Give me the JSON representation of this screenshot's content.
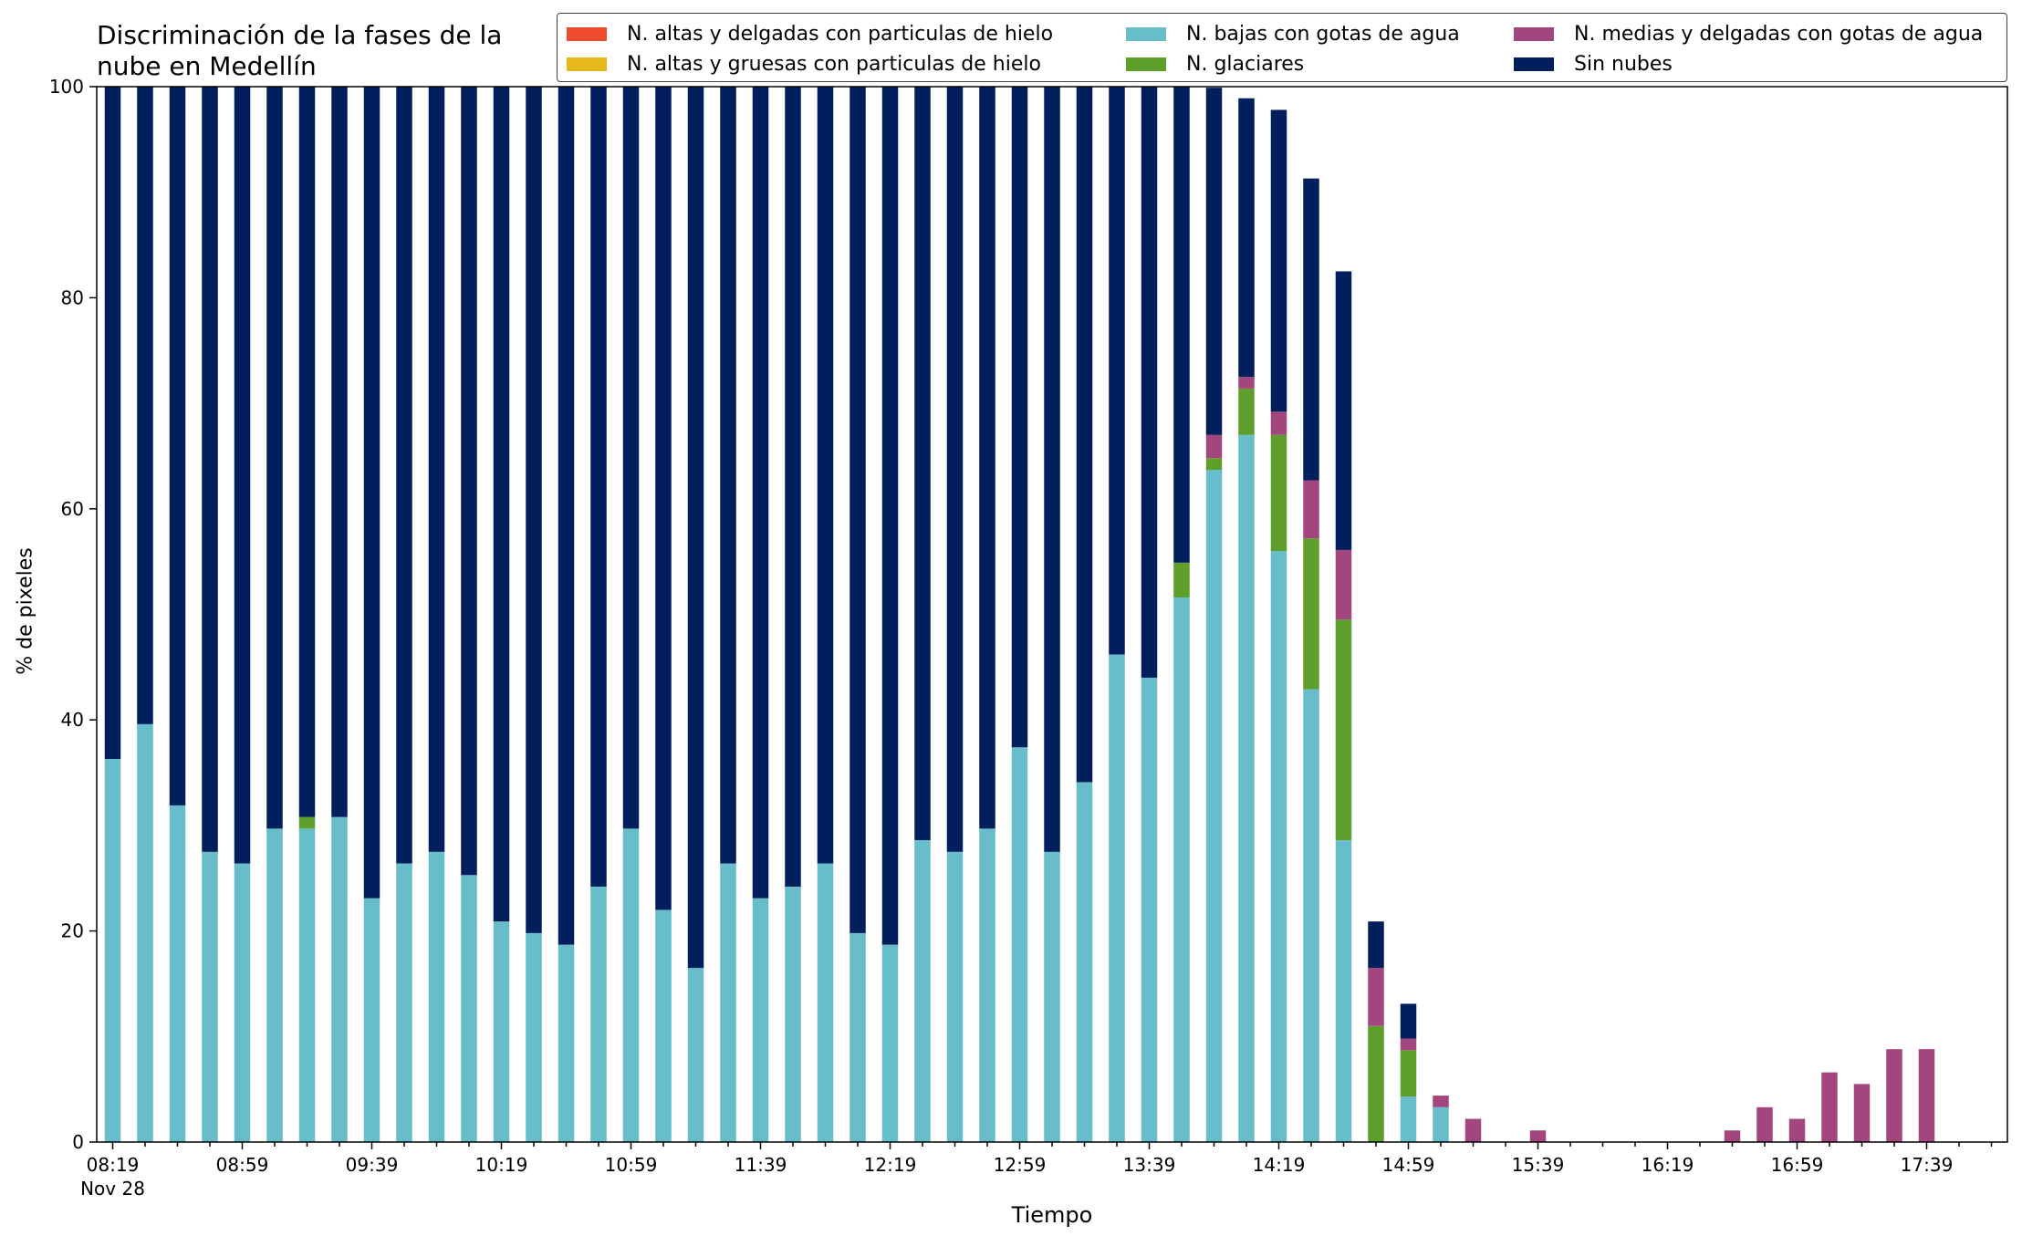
{
  "chart_data": {
    "type": "bar",
    "stacked": true,
    "title": "Discriminación de la fases de la\nnube en Medellín",
    "xlabel": "Tiempo",
    "ylabel": "% de pixeles",
    "ylim": [
      0,
      100
    ],
    "yticks": [
      0,
      20,
      40,
      60,
      80,
      100
    ],
    "x_start": "08:19",
    "x_interval_minutes": 10,
    "x_date_label": "Nov 28",
    "xtick_labels": [
      "08:19",
      "08:59",
      "09:39",
      "10:19",
      "10:59",
      "11:39",
      "12:19",
      "12:59",
      "13:39",
      "14:19",
      "14:59",
      "15:39",
      "16:19",
      "16:59",
      "17:39"
    ],
    "grid": false,
    "legend_position": "top-right",
    "series": [
      {
        "name": "N. altas y delgadas con particulas de hielo",
        "color": "#EE4A2C",
        "values": [
          0,
          0,
          0,
          0,
          0,
          0,
          0,
          0,
          0,
          0,
          0,
          0,
          0,
          0,
          0,
          0,
          0,
          0,
          0,
          0,
          0,
          0,
          0,
          0,
          0,
          0,
          0,
          0,
          0,
          0,
          0,
          0,
          0,
          0,
          0,
          0,
          0,
          0,
          0,
          0,
          0,
          0,
          0,
          0,
          0,
          0,
          0,
          0,
          0,
          0,
          0,
          0,
          0,
          0,
          0,
          0,
          0,
          0,
          0
        ]
      },
      {
        "name": "N. altas y gruesas con particulas de hielo",
        "color": "#E6B819",
        "values": [
          0,
          0,
          0,
          0,
          0,
          0,
          0,
          0,
          0,
          0,
          0,
          0,
          0,
          0,
          0,
          0,
          0,
          0,
          0,
          0,
          0,
          0,
          0,
          0,
          0,
          0,
          0,
          0,
          0,
          0,
          0,
          0,
          0,
          0,
          0,
          0,
          0,
          0,
          0,
          0,
          0,
          0,
          0,
          0,
          0,
          0,
          0,
          0,
          0,
          0,
          0,
          0,
          0,
          0,
          0,
          0,
          0,
          0,
          0
        ]
      },
      {
        "name": "N. bajas con gotas de agua",
        "color": "#67BDCA",
        "values": [
          36.3,
          39.6,
          31.9,
          27.5,
          26.4,
          29.7,
          29.7,
          30.8,
          23.1,
          26.4,
          27.5,
          25.3,
          20.9,
          19.8,
          18.7,
          24.2,
          29.7,
          22.0,
          16.5,
          26.4,
          23.1,
          24.2,
          26.4,
          19.8,
          18.7,
          28.6,
          27.5,
          29.7,
          37.4,
          27.5,
          34.1,
          46.2,
          44.0,
          51.6,
          63.7,
          67.0,
          56.0,
          42.9,
          28.6,
          0,
          4.3,
          3.3,
          0,
          0,
          0,
          0,
          0,
          0,
          0,
          0,
          0,
          0,
          0,
          0,
          0,
          0,
          0,
          0,
          0
        ]
      },
      {
        "name": "N. glaciares",
        "color": "#5E9F2C",
        "values": [
          0,
          0,
          0,
          0,
          0,
          0,
          1.1,
          0,
          0,
          0,
          0,
          0,
          0,
          0,
          0,
          0,
          0,
          0,
          0,
          0,
          0,
          0,
          0,
          0,
          0,
          0,
          0,
          0,
          0,
          0,
          0,
          0,
          0,
          3.3,
          1.1,
          4.4,
          11.0,
          14.3,
          20.9,
          11.0,
          4.4,
          0,
          0,
          0,
          0,
          0,
          0,
          0,
          0,
          0,
          0,
          0,
          0,
          0,
          0,
          0,
          0,
          0,
          0
        ]
      },
      {
        "name": "N. medias y delgadas con gotas de agua",
        "color": "#A4467E",
        "values": [
          0,
          0,
          0,
          0,
          0,
          0,
          0,
          0,
          0,
          0,
          0,
          0,
          0,
          0,
          0,
          0,
          0,
          0,
          0,
          0,
          0,
          0,
          0,
          0,
          0,
          0,
          0,
          0,
          0,
          0,
          0,
          0,
          0,
          0,
          2.2,
          1.1,
          2.2,
          5.5,
          6.6,
          5.5,
          1.1,
          1.1,
          2.2,
          0,
          1.1,
          0,
          0,
          0,
          0,
          0,
          1.1,
          3.3,
          2.2,
          6.6,
          5.5,
          8.8,
          8.8,
          0,
          0
        ]
      },
      {
        "name": "Sin nubes",
        "color": "#021F5D",
        "values": [
          63.7,
          60.4,
          68.1,
          72.5,
          73.6,
          70.3,
          69.2,
          69.2,
          76.9,
          73.6,
          72.5,
          74.7,
          79.1,
          80.2,
          81.3,
          75.8,
          70.3,
          78.0,
          83.5,
          73.6,
          76.9,
          75.8,
          73.6,
          80.2,
          81.3,
          71.4,
          72.5,
          70.3,
          62.6,
          72.5,
          65.9,
          53.8,
          56.0,
          45.1,
          32.9,
          26.4,
          28.6,
          28.6,
          26.4,
          4.4,
          3.3,
          0,
          0,
          0,
          0,
          0,
          0,
          0,
          0,
          0,
          0,
          0,
          0,
          0,
          0,
          0,
          0,
          0,
          0
        ]
      }
    ]
  }
}
